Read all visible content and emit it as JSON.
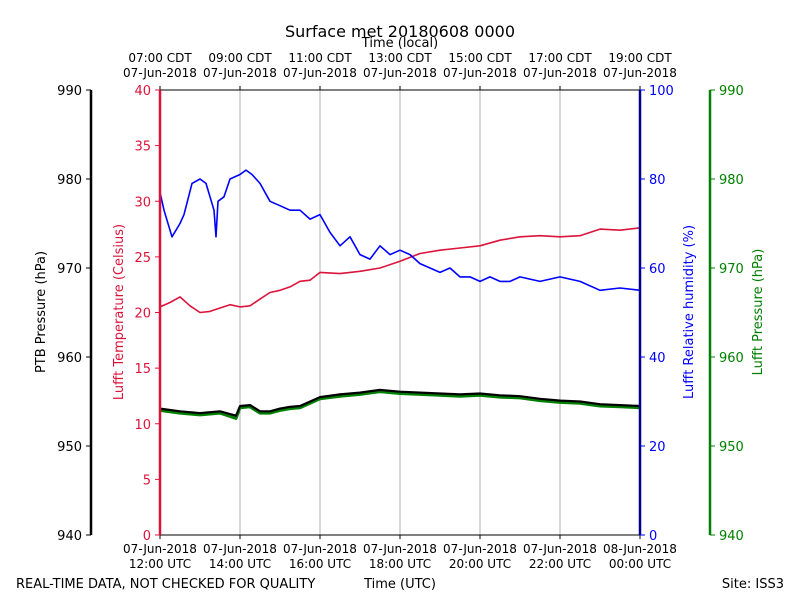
{
  "chart_data": {
    "type": "line",
    "title": "Surface met 20180608 0000",
    "top_axis_label": "Time (local)",
    "xlabel": "Time (UTC)",
    "footer_left": "REAL-TIME DATA, NOT CHECKED FOR QUALITY",
    "footer_right": "Site: ISS3",
    "x_range_hours": [
      12,
      24
    ],
    "x_ticks": [
      {
        "hour": 12,
        "utc_date": "07-Jun-2018",
        "utc_time": "12:00 UTC",
        "local_time": "07:00 CDT",
        "local_date": "07-Jun-2018"
      },
      {
        "hour": 14,
        "utc_date": "07-Jun-2018",
        "utc_time": "14:00 UTC",
        "local_time": "09:00 CDT",
        "local_date": "07-Jun-2018"
      },
      {
        "hour": 16,
        "utc_date": "07-Jun-2018",
        "utc_time": "16:00 UTC",
        "local_time": "11:00 CDT",
        "local_date": "07-Jun-2018"
      },
      {
        "hour": 18,
        "utc_date": "07-Jun-2018",
        "utc_time": "18:00 UTC",
        "local_time": "13:00 CDT",
        "local_date": "07-Jun-2018"
      },
      {
        "hour": 20,
        "utc_date": "07-Jun-2018",
        "utc_time": "20:00 UTC",
        "local_time": "15:00 CDT",
        "local_date": "07-Jun-2018"
      },
      {
        "hour": 22,
        "utc_date": "07-Jun-2018",
        "utc_time": "22:00 UTC",
        "local_time": "17:00 CDT",
        "local_date": "07-Jun-2018"
      },
      {
        "hour": 24,
        "utc_date": "08-Jun-2018",
        "utc_time": "00:00 UTC",
        "local_time": "19:00 CDT",
        "local_date": "07-Jun-2018"
      }
    ],
    "axes": {
      "ptb_pressure": {
        "label": "PTB Pressure (hPa)",
        "range": [
          940,
          990
        ],
        "ticks": [
          940,
          950,
          960,
          970,
          980,
          990
        ],
        "color": "#000000"
      },
      "temperature": {
        "label": "Lufft Temperature (Celsius)",
        "range": [
          0,
          40
        ],
        "ticks": [
          0,
          5,
          10,
          15,
          20,
          25,
          30,
          35,
          40
        ],
        "color": "#dc143c"
      },
      "humidity": {
        "label": "Lufft Relative humidity (%)",
        "range": [
          0,
          100
        ],
        "ticks": [
          0,
          20,
          40,
          60,
          80,
          100
        ],
        "color": "#0000ff"
      },
      "lufft_pressure": {
        "label": "Lufft Pressure (hPa)",
        "range": [
          940,
          990
        ],
        "ticks": [
          940,
          950,
          960,
          970,
          980,
          990
        ],
        "color": "#008000"
      }
    },
    "series": [
      {
        "name": "Lufft Temperature",
        "axis": "temperature",
        "color": "#dc143c",
        "x": [
          12.0,
          12.25,
          12.5,
          12.75,
          13.0,
          13.25,
          13.5,
          13.75,
          14.0,
          14.25,
          14.5,
          14.75,
          15.0,
          15.25,
          15.5,
          15.75,
          16.0,
          16.5,
          17.0,
          17.5,
          18.0,
          18.5,
          19.0,
          19.5,
          20.0,
          20.5,
          21.0,
          21.5,
          22.0,
          22.5,
          23.0,
          23.5,
          24.0
        ],
        "values": [
          20.5,
          20.9,
          21.4,
          20.6,
          20.0,
          20.1,
          20.4,
          20.7,
          20.5,
          20.6,
          21.2,
          21.8,
          22.0,
          22.3,
          22.8,
          22.9,
          23.6,
          23.5,
          23.7,
          24.0,
          24.6,
          25.3,
          25.6,
          25.8,
          26.0,
          26.5,
          26.8,
          26.9,
          26.8,
          26.9,
          27.5,
          27.4,
          27.6
        ]
      },
      {
        "name": "Lufft Relative humidity",
        "axis": "humidity",
        "color": "#0000ff",
        "x": [
          12.0,
          12.1,
          12.3,
          12.5,
          12.6,
          12.8,
          13.0,
          13.15,
          13.35,
          13.4,
          13.45,
          13.6,
          13.75,
          14.0,
          14.15,
          14.3,
          14.5,
          14.75,
          15.0,
          15.25,
          15.5,
          15.75,
          16.0,
          16.25,
          16.5,
          16.75,
          17.0,
          17.25,
          17.5,
          17.75,
          18.0,
          18.25,
          18.5,
          18.75,
          19.0,
          19.25,
          19.5,
          19.75,
          20.0,
          20.25,
          20.5,
          20.75,
          21.0,
          21.5,
          22.0,
          22.5,
          23.0,
          23.5,
          24.0
        ],
        "values": [
          77,
          73,
          67,
          70,
          72,
          79,
          80,
          79,
          73,
          67,
          75,
          76,
          80,
          81,
          82,
          81,
          79,
          75,
          74,
          73,
          73,
          71,
          72,
          68,
          65,
          67,
          63,
          62,
          65,
          63,
          64,
          63,
          61,
          60,
          59,
          60,
          58,
          58,
          57,
          58,
          57,
          57,
          58,
          57,
          58,
          57,
          55,
          55.5,
          55
        ]
      },
      {
        "name": "PTB Pressure",
        "axis": "ptb_pressure",
        "color": "#000000",
        "x": [
          12.0,
          12.5,
          13.0,
          13.5,
          13.9,
          14.0,
          14.25,
          14.5,
          14.75,
          15.0,
          15.25,
          15.5,
          16.0,
          16.5,
          17.0,
          17.5,
          18.0,
          18.5,
          19.0,
          19.5,
          20.0,
          20.5,
          21.0,
          21.5,
          22.0,
          22.5,
          23.0,
          23.5,
          24.0
        ],
        "values": [
          954.2,
          953.9,
          953.7,
          953.9,
          953.4,
          954.5,
          954.6,
          953.9,
          953.9,
          954.2,
          954.4,
          954.5,
          955.5,
          955.8,
          956.0,
          956.3,
          956.1,
          956.0,
          955.9,
          955.8,
          955.9,
          955.7,
          955.6,
          955.3,
          955.1,
          955.0,
          954.7,
          954.6,
          954.5
        ]
      },
      {
        "name": "Lufft Pressure",
        "axis": "lufft_pressure",
        "color": "#008000",
        "x": [
          12.0,
          12.5,
          13.0,
          13.5,
          13.9,
          14.0,
          14.25,
          14.5,
          14.75,
          15.0,
          15.25,
          15.5,
          16.0,
          16.5,
          17.0,
          17.5,
          18.0,
          18.5,
          19.0,
          19.5,
          20.0,
          20.5,
          21.0,
          21.5,
          22.0,
          22.5,
          23.0,
          23.5,
          24.0
        ],
        "values": [
          954.0,
          953.7,
          953.5,
          953.7,
          953.1,
          954.3,
          954.4,
          953.7,
          953.7,
          954.0,
          954.2,
          954.3,
          955.3,
          955.6,
          955.8,
          956.1,
          955.9,
          955.8,
          955.7,
          955.6,
          955.7,
          955.5,
          955.4,
          955.1,
          954.9,
          954.8,
          954.5,
          954.4,
          954.3
        ]
      }
    ]
  }
}
